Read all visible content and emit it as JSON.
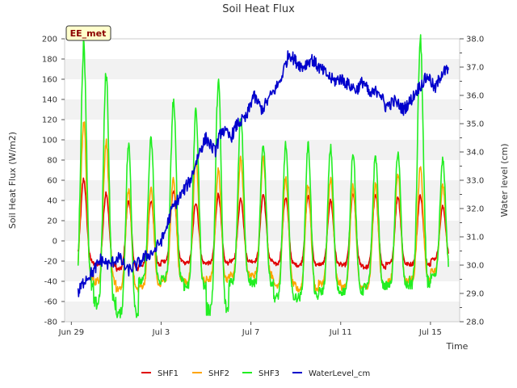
{
  "chart_data": {
    "type": "line",
    "title": "Soil Heat Flux",
    "badge": "EE_met",
    "xlabel": "Time",
    "ylabel_left": "Soil Heat Flux (W/m2)",
    "ylabel_right": "Water level (cm)",
    "x_unit": "days since Jun 29",
    "xlim": [
      -0.3,
      17.3
    ],
    "ylim_left": [
      -80,
      200
    ],
    "ylim_right": [
      28.0,
      38.0
    ],
    "x_ticks": [
      {
        "x": 0,
        "label": "Jun 29"
      },
      {
        "x": 4,
        "label": "Jul 3"
      },
      {
        "x": 8,
        "label": "Jul 7"
      },
      {
        "x": 12,
        "label": "Jul 11"
      },
      {
        "x": 16,
        "label": "Jul 15"
      }
    ],
    "y_ticks_left": [
      -80,
      -60,
      -40,
      -20,
      0,
      20,
      40,
      60,
      80,
      100,
      120,
      140,
      160,
      180,
      200
    ],
    "y_ticks_right": [
      "28.0",
      "29.0",
      "30.0",
      "31.0",
      "32.0",
      "33.0",
      "34.0",
      "35.0",
      "36.0",
      "37.0",
      "38.0"
    ],
    "colors": {
      "SHF1": "#e00000",
      "SHF2": "#ffa500",
      "SHF3": "#22ee22",
      "WaterLevel_cm": "#0000cc"
    },
    "series": [
      {
        "name": "SHF1",
        "axis": "left",
        "color": "#e00000",
        "day_start": 0.3,
        "day_end": 16.8,
        "daily_min": [
          -20,
          -24,
          -28,
          -24,
          -20,
          -22,
          -22,
          -20,
          -20,
          -23,
          -24,
          -23,
          -24,
          -26,
          -23,
          -23,
          -18
        ],
        "daily_max": [
          61,
          48,
          40,
          40,
          50,
          38,
          46,
          42,
          46,
          43,
          44,
          40,
          46,
          45,
          44,
          45,
          34
        ]
      },
      {
        "name": "SHF2",
        "axis": "left",
        "color": "#ffa500",
        "day_start": 0.3,
        "day_end": 16.8,
        "daily_min": [
          -38,
          -40,
          -48,
          -45,
          -38,
          -40,
          -38,
          -34,
          -34,
          -44,
          -48,
          -42,
          -46,
          -45,
          -40,
          -38,
          -30
        ],
        "daily_max": [
          118,
          98,
          50,
          52,
          62,
          80,
          70,
          82,
          84,
          62,
          55,
          62,
          54,
          56,
          68,
          72,
          55
        ]
      },
      {
        "name": "SHF3",
        "axis": "left",
        "color": "#22ee22",
        "day_start": 0.3,
        "day_end": 16.8,
        "daily_min": [
          -46,
          -62,
          -72,
          -40,
          -38,
          -45,
          -68,
          -40,
          -42,
          -56,
          -56,
          -50,
          -50,
          -45,
          -44,
          -42,
          -36
        ],
        "daily_max": [
          193,
          166,
          95,
          100,
          138,
          128,
          158,
          125,
          96,
          95,
          95,
          92,
          88,
          84,
          88,
          198,
          80
        ]
      },
      {
        "name": "WaterLevel_cm",
        "axis": "right",
        "color": "#0000cc",
        "x": [
          0.3,
          0.6,
          1.0,
          1.3,
          1.7,
          2.1,
          2.5,
          2.9,
          3.3,
          3.7,
          4.1,
          4.5,
          4.9,
          5.3,
          5.7,
          6.0,
          6.4,
          6.7,
          7.1,
          7.4,
          7.8,
          8.1,
          8.5,
          8.9,
          9.3,
          9.7,
          10.0,
          10.3,
          10.7,
          11.0,
          11.3,
          11.7,
          12.0,
          12.3,
          12.7,
          13.0,
          13.3,
          13.7,
          14.0,
          14.4,
          14.8,
          15.1,
          15.5,
          15.9,
          16.2,
          16.5,
          16.8
        ],
        "y": [
          29.0,
          29.5,
          29.8,
          30.2,
          30.0,
          30.3,
          29.8,
          30.0,
          30.3,
          30.5,
          31.0,
          32.0,
          32.5,
          33.0,
          34.0,
          34.5,
          34.0,
          34.8,
          34.5,
          35.0,
          35.2,
          36.0,
          35.5,
          36.0,
          36.5,
          37.5,
          37.2,
          37.0,
          37.3,
          37.0,
          36.8,
          36.5,
          36.6,
          36.4,
          36.2,
          36.5,
          36.0,
          36.2,
          35.6,
          35.8,
          35.5,
          35.8,
          36.3,
          36.7,
          36.2,
          36.8,
          36.9
        ]
      }
    ],
    "legend": {
      "placement": "bottom-center",
      "entries": [
        "SHF1",
        "SHF2",
        "SHF3",
        "WaterLevel_cm"
      ]
    },
    "grid": "horizontal bands"
  }
}
